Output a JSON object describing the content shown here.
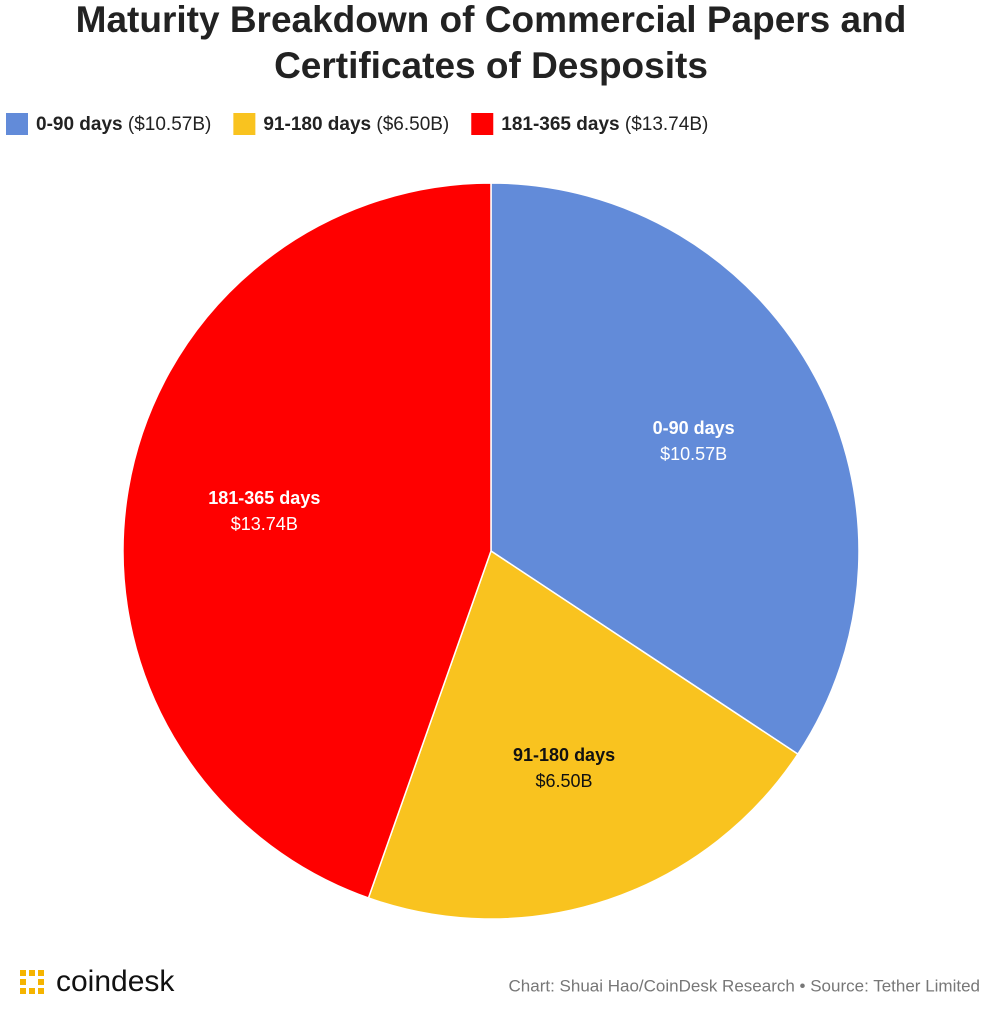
{
  "chart_data": {
    "type": "pie",
    "title": [
      "Maturity Breakdown of Commercial Papers and",
      "Certificates of Desposits"
    ],
    "categories": [
      "0-90 days",
      "91-180 days",
      "181-365 days"
    ],
    "values": [
      10.57,
      6.5,
      13.74
    ],
    "value_labels": [
      "$10.57B",
      "$6.50B",
      "$13.74B"
    ],
    "legend_value_labels": [
      "($10.57B)",
      "($6.50B)",
      "($13.74B)"
    ],
    "colors": [
      "#628bd9",
      "#f9c31f",
      "#ff0000"
    ],
    "legend": "top",
    "logo": "coindesk",
    "source": "Chart: Shuai Hao/CoinDesk Research • Source: Tether Limited"
  }
}
